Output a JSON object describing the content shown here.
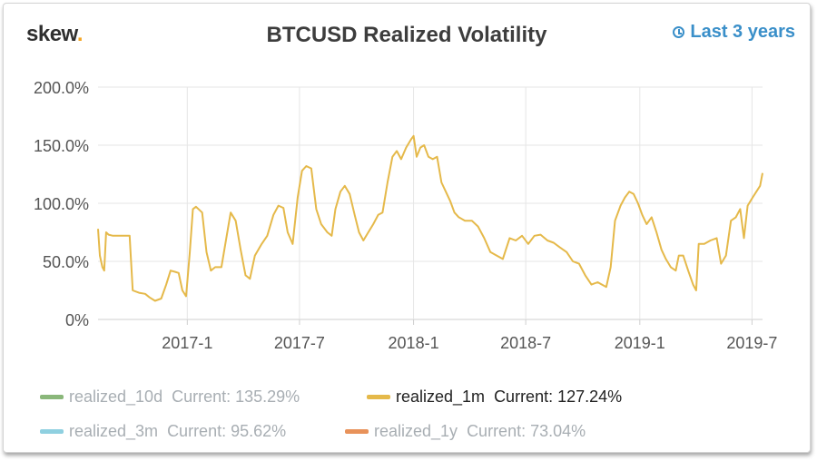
{
  "header": {
    "logo_text": "skew",
    "logo_dot": ".",
    "title": "BTCUSD Realized Volatility",
    "range_label": "Last 3 years"
  },
  "chart_data": {
    "type": "line",
    "title": "BTCUSD Realized Volatility",
    "xlabel": "",
    "ylabel": "",
    "ylim": [
      0,
      200
    ],
    "yticks": [
      "0%",
      "50.0%",
      "100.0%",
      "150.0%",
      "200.0%"
    ],
    "ytick_values": [
      0,
      50,
      100,
      150,
      200
    ],
    "xticks": [
      "2017-1",
      "2017-7",
      "2018-1",
      "2018-7",
      "2019-1",
      "2019-7"
    ],
    "xtick_values": [
      "2017-01-01",
      "2017-07-01",
      "2018-01-01",
      "2018-07-01",
      "2019-01-01",
      "2019-07-01"
    ],
    "xlim": [
      "2016-08-10",
      "2019-07-18"
    ],
    "grid": true,
    "series": [
      {
        "name": "realized_1m",
        "color": "#e5b94a",
        "visible": true,
        "current": "Current: 127.24%",
        "points": [
          [
            "2016-08-10",
            78
          ],
          [
            "2016-08-13",
            55
          ],
          [
            "2016-08-17",
            45
          ],
          [
            "2016-08-20",
            42
          ],
          [
            "2016-08-23",
            75
          ],
          [
            "2016-08-27",
            73
          ],
          [
            "2016-09-03",
            72
          ],
          [
            "2016-09-15",
            72
          ],
          [
            "2016-09-30",
            72
          ],
          [
            "2016-10-05",
            25
          ],
          [
            "2016-10-15",
            23
          ],
          [
            "2016-10-25",
            22
          ],
          [
            "2016-11-01",
            19
          ],
          [
            "2016-11-10",
            16
          ],
          [
            "2016-11-20",
            18
          ],
          [
            "2016-11-28",
            30
          ],
          [
            "2016-12-05",
            42
          ],
          [
            "2016-12-12",
            41
          ],
          [
            "2016-12-18",
            40
          ],
          [
            "2016-12-24",
            25
          ],
          [
            "2016-12-30",
            20
          ],
          [
            "2017-01-05",
            58
          ],
          [
            "2017-01-10",
            95
          ],
          [
            "2017-01-15",
            97
          ],
          [
            "2017-01-25",
            92
          ],
          [
            "2017-02-01",
            58
          ],
          [
            "2017-02-08",
            42
          ],
          [
            "2017-02-15",
            45
          ],
          [
            "2017-02-25",
            45
          ],
          [
            "2017-03-05",
            70
          ],
          [
            "2017-03-12",
            92
          ],
          [
            "2017-03-20",
            85
          ],
          [
            "2017-03-28",
            60
          ],
          [
            "2017-04-05",
            38
          ],
          [
            "2017-04-12",
            35
          ],
          [
            "2017-04-20",
            55
          ],
          [
            "2017-05-01",
            65
          ],
          [
            "2017-05-10",
            72
          ],
          [
            "2017-05-20",
            90
          ],
          [
            "2017-05-28",
            98
          ],
          [
            "2017-06-05",
            96
          ],
          [
            "2017-06-12",
            75
          ],
          [
            "2017-06-20",
            65
          ],
          [
            "2017-06-28",
            105
          ],
          [
            "2017-07-05",
            128
          ],
          [
            "2017-07-12",
            132
          ],
          [
            "2017-07-20",
            130
          ],
          [
            "2017-07-28",
            95
          ],
          [
            "2017-08-05",
            82
          ],
          [
            "2017-08-15",
            75
          ],
          [
            "2017-08-22",
            72
          ],
          [
            "2017-08-28",
            95
          ],
          [
            "2017-09-05",
            110
          ],
          [
            "2017-09-12",
            115
          ],
          [
            "2017-09-20",
            108
          ],
          [
            "2017-09-28",
            90
          ],
          [
            "2017-10-05",
            75
          ],
          [
            "2017-10-12",
            68
          ],
          [
            "2017-10-20",
            75
          ],
          [
            "2017-10-28",
            82
          ],
          [
            "2017-11-05",
            90
          ],
          [
            "2017-11-12",
            92
          ],
          [
            "2017-11-20",
            118
          ],
          [
            "2017-11-28",
            140
          ],
          [
            "2017-12-05",
            145
          ],
          [
            "2017-12-12",
            138
          ],
          [
            "2017-12-20",
            148
          ],
          [
            "2017-12-28",
            155
          ],
          [
            "2018-01-01",
            158
          ],
          [
            "2018-01-06",
            140
          ],
          [
            "2018-01-12",
            148
          ],
          [
            "2018-01-18",
            150
          ],
          [
            "2018-01-25",
            140
          ],
          [
            "2018-02-01",
            138
          ],
          [
            "2018-02-08",
            140
          ],
          [
            "2018-02-15",
            118
          ],
          [
            "2018-02-22",
            110
          ],
          [
            "2018-03-01",
            102
          ],
          [
            "2018-03-08",
            92
          ],
          [
            "2018-03-15",
            88
          ],
          [
            "2018-03-25",
            85
          ],
          [
            "2018-04-05",
            85
          ],
          [
            "2018-04-15",
            80
          ],
          [
            "2018-04-25",
            70
          ],
          [
            "2018-05-05",
            58
          ],
          [
            "2018-05-15",
            55
          ],
          [
            "2018-05-25",
            52
          ],
          [
            "2018-06-05",
            70
          ],
          [
            "2018-06-15",
            68
          ],
          [
            "2018-06-25",
            72
          ],
          [
            "2018-07-05",
            65
          ],
          [
            "2018-07-15",
            72
          ],
          [
            "2018-07-25",
            73
          ],
          [
            "2018-08-05",
            68
          ],
          [
            "2018-08-15",
            66
          ],
          [
            "2018-08-25",
            62
          ],
          [
            "2018-09-05",
            58
          ],
          [
            "2018-09-15",
            50
          ],
          [
            "2018-09-25",
            48
          ],
          [
            "2018-10-05",
            38
          ],
          [
            "2018-10-15",
            30
          ],
          [
            "2018-10-25",
            32
          ],
          [
            "2018-11-01",
            30
          ],
          [
            "2018-11-08",
            28
          ],
          [
            "2018-11-15",
            45
          ],
          [
            "2018-11-22",
            85
          ],
          [
            "2018-12-01",
            98
          ],
          [
            "2018-12-08",
            105
          ],
          [
            "2018-12-15",
            110
          ],
          [
            "2018-12-22",
            108
          ],
          [
            "2018-12-29",
            100
          ],
          [
            "2019-01-05",
            90
          ],
          [
            "2019-01-12",
            82
          ],
          [
            "2019-01-20",
            88
          ],
          [
            "2019-01-28",
            75
          ],
          [
            "2019-02-05",
            60
          ],
          [
            "2019-02-12",
            52
          ],
          [
            "2019-02-20",
            45
          ],
          [
            "2019-02-28",
            42
          ],
          [
            "2019-03-05",
            55
          ],
          [
            "2019-03-12",
            55
          ],
          [
            "2019-03-20",
            42
          ],
          [
            "2019-03-28",
            30
          ],
          [
            "2019-04-02",
            25
          ],
          [
            "2019-04-06",
            65
          ],
          [
            "2019-04-15",
            65
          ],
          [
            "2019-04-25",
            68
          ],
          [
            "2019-05-05",
            70
          ],
          [
            "2019-05-12",
            48
          ],
          [
            "2019-05-20",
            55
          ],
          [
            "2019-05-28",
            85
          ],
          [
            "2019-06-05",
            88
          ],
          [
            "2019-06-12",
            95
          ],
          [
            "2019-06-18",
            70
          ],
          [
            "2019-06-24",
            98
          ],
          [
            "2019-07-02",
            105
          ],
          [
            "2019-07-08",
            110
          ],
          [
            "2019-07-14",
            115
          ],
          [
            "2019-07-18",
            126
          ]
        ]
      }
    ]
  },
  "legend": [
    {
      "name": "realized_10d",
      "current": "Current: 135.29%",
      "color": "#8ab77a",
      "active": false
    },
    {
      "name": "realized_1m",
      "current": "Current: 127.24%",
      "color": "#e5b94a",
      "active": true
    },
    {
      "name": "realized_3m",
      "current": "Current: 95.62%",
      "color": "#8fd0e0",
      "active": false
    },
    {
      "name": "realized_1y",
      "current": "Current: 73.04%",
      "color": "#e8925a",
      "active": false
    }
  ]
}
